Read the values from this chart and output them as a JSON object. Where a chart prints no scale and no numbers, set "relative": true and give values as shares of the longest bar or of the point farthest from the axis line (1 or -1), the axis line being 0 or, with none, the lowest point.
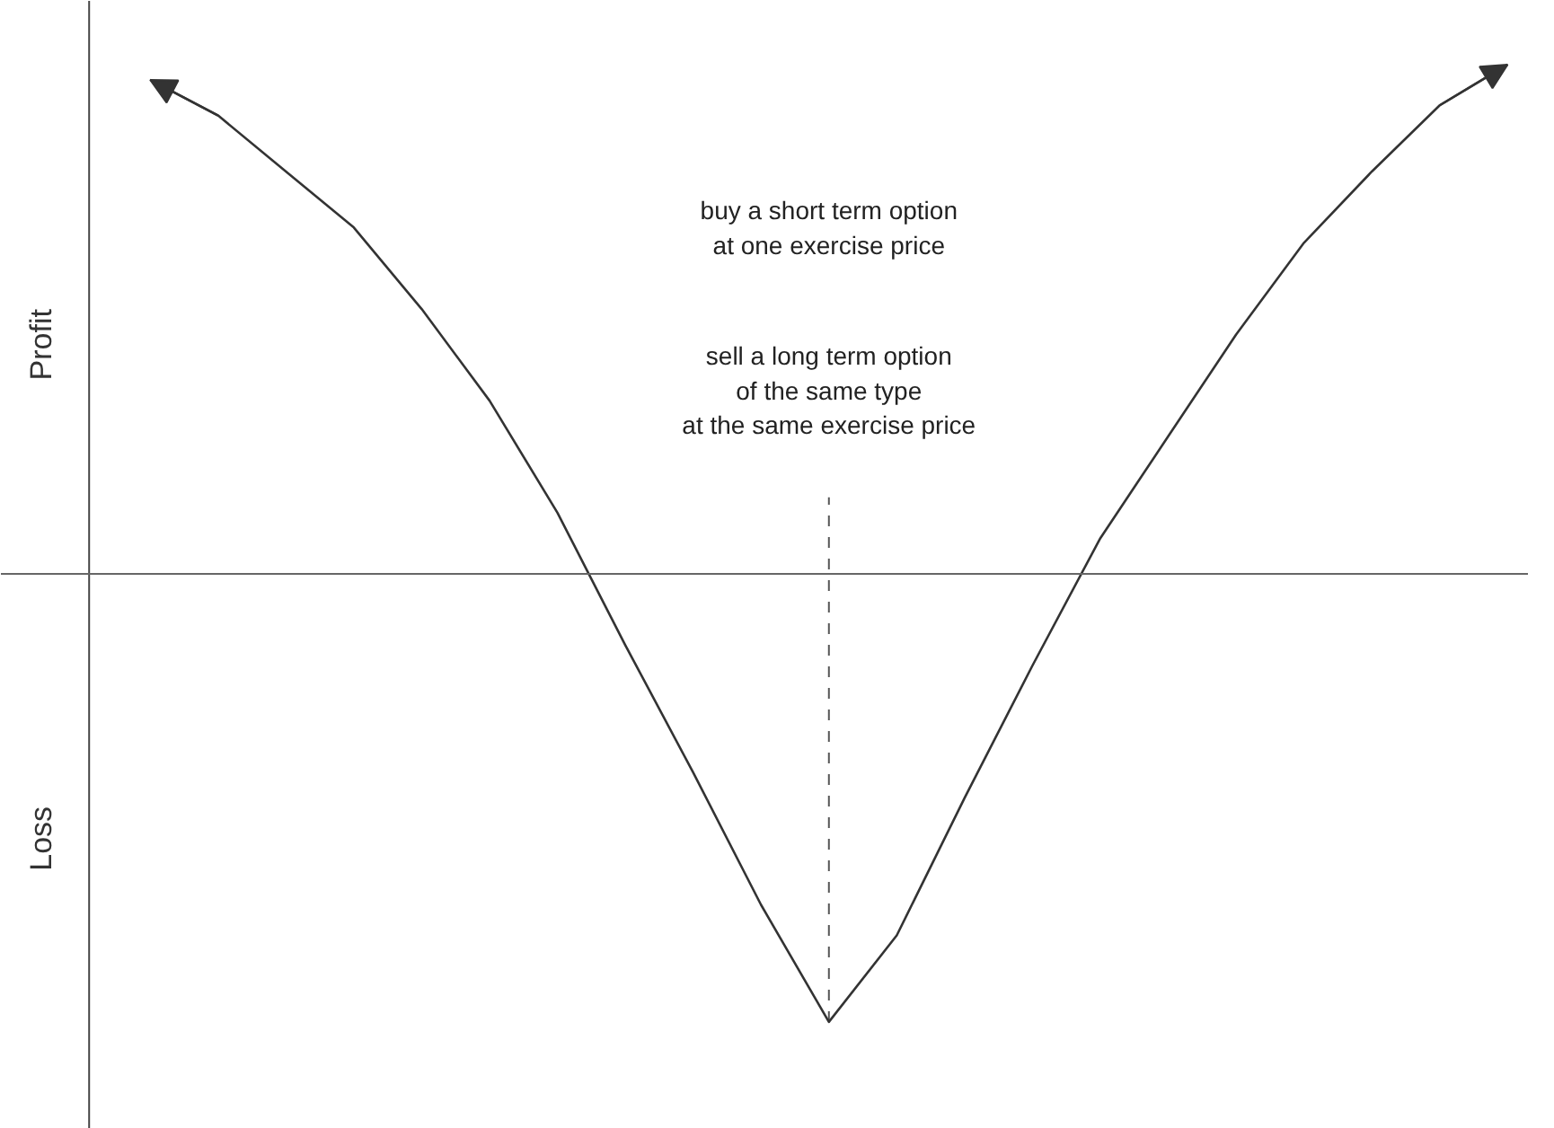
{
  "chart_data": {
    "type": "line",
    "relative": true,
    "marker": "none",
    "line_style": "solid",
    "color": "#333333",
    "categories": [
      null,
      null,
      null,
      null,
      null,
      null,
      null,
      null,
      null,
      null,
      null,
      null,
      null,
      null,
      null,
      null,
      null,
      null,
      null,
      null,
      null
    ],
    "values": [
      0.97,
      0.9,
      0.79,
      0.68,
      0.52,
      0.34,
      0.12,
      -0.14,
      -0.39,
      -0.65,
      -0.88,
      -0.71,
      -0.44,
      -0.18,
      0.07,
      0.27,
      0.47,
      0.65,
      0.79,
      0.92,
      1.0
    ],
    "annotations": [
      "Profit",
      "Loss",
      "buy a short term option\nat one exercise price",
      "sell a long term option\nof the same type\nat the same exercise price"
    ]
  }
}
